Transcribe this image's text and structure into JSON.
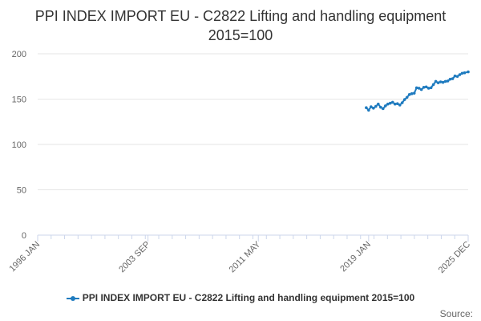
{
  "chart_data": {
    "type": "line",
    "title": "PPI INDEX IMPORT EU - C2822 Lifting and handling equipment 2015=100",
    "xlabel": "",
    "ylabel": "",
    "x_range": [
      "1996-01",
      "2025-12"
    ],
    "ylim": [
      0,
      200
    ],
    "yticks": [
      0,
      50,
      100,
      150,
      200
    ],
    "xtick_labels": [
      "1996 JAN",
      "2003 SEP",
      "2011 MAY",
      "2019 JAN",
      "2025 DEC"
    ],
    "xtick_dates": [
      "1996-01",
      "2003-09",
      "2011-05",
      "2019-01",
      "2025-12"
    ],
    "grid": true,
    "legend_position": "bottom",
    "colors": {
      "series": "#1f7bbf",
      "grid": "#e6e6e6",
      "axis": "#ccd6eb"
    },
    "series": [
      {
        "name": "PPI INDEX IMPORT EU - C2822 Lifting and handling equipment 2015=100",
        "x": [
          "2018-11",
          "2019-01",
          "2019-03",
          "2019-05",
          "2019-07",
          "2019-09",
          "2019-11",
          "2020-01",
          "2020-03",
          "2020-05",
          "2020-07",
          "2020-09",
          "2020-11",
          "2021-01",
          "2021-03",
          "2021-05",
          "2021-07",
          "2021-09",
          "2021-11",
          "2022-01",
          "2022-03",
          "2022-05",
          "2022-07",
          "2022-09",
          "2022-11",
          "2023-01",
          "2023-03",
          "2023-05",
          "2023-07",
          "2023-09",
          "2023-11",
          "2024-01",
          "2024-03",
          "2024-05",
          "2024-07",
          "2024-09",
          "2024-11",
          "2025-01",
          "2025-03",
          "2025-05",
          "2025-07",
          "2025-09",
          "2025-12"
        ],
        "values": [
          140.5,
          137.8,
          141.5,
          140.0,
          142.0,
          144.5,
          141.0,
          139.5,
          142.5,
          144.5,
          145.5,
          146.5,
          144.5,
          145.0,
          143.5,
          146.0,
          149.5,
          152.0,
          155.0,
          156.0,
          156.5,
          162.5,
          162.0,
          160.5,
          163.0,
          163.5,
          162.0,
          162.5,
          166.0,
          169.5,
          168.0,
          169.0,
          168.5,
          169.5,
          170.0,
          172.0,
          172.5,
          175.5,
          175.0,
          177.0,
          178.5,
          179.0,
          180.0
        ]
      }
    ]
  },
  "legend": {
    "label": "PPI INDEX IMPORT EU - C2822 Lifting and handling equipment 2015=100"
  },
  "credits": "Source:"
}
